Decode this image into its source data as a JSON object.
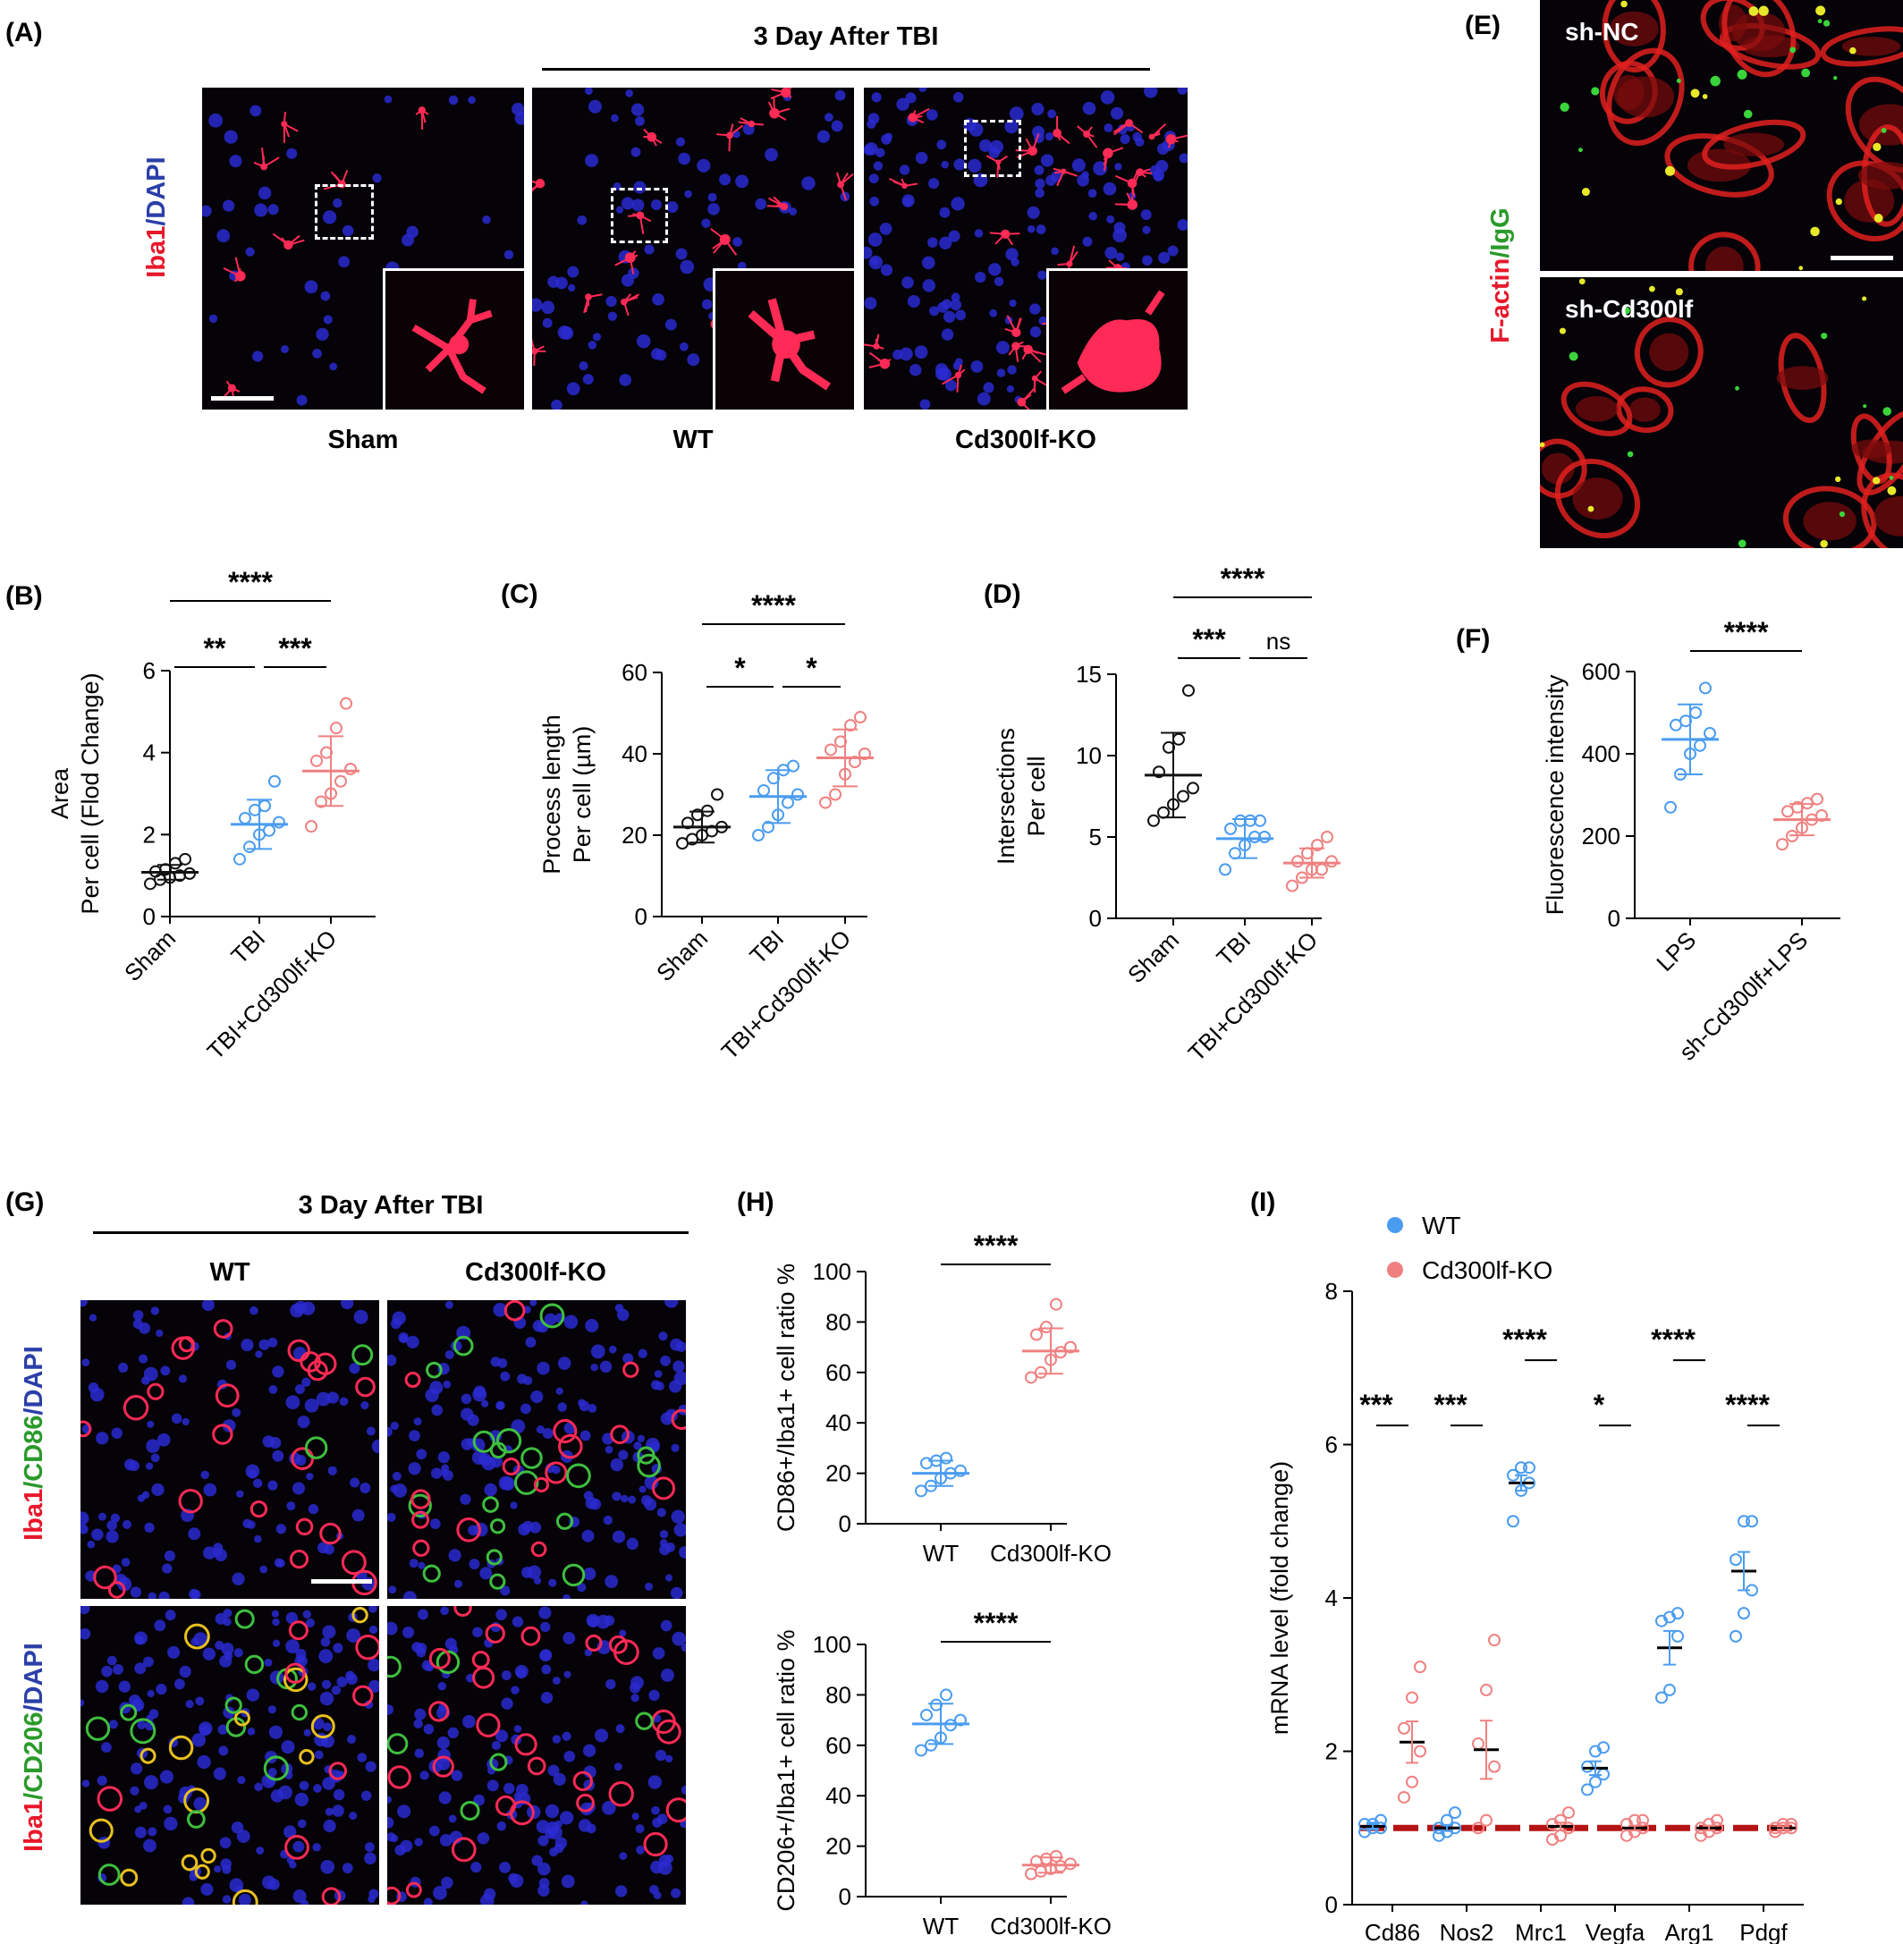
{
  "panelA": {
    "label": "(A)",
    "header": "3 Day After TBI",
    "stain": {
      "a": "Iba1",
      "sep": "/",
      "b": "DAPI"
    },
    "groups": [
      "Sham",
      "WT",
      "Cd300lf-KO"
    ]
  },
  "panelE": {
    "label": "(E)",
    "stain": {
      "a": "F-actin",
      "sep": "/",
      "b": "IgG"
    },
    "images": [
      "sh-NC",
      "sh-Cd300lf"
    ]
  },
  "panelG": {
    "label": "(G)",
    "header": "3 Day After TBI",
    "cols": [
      "WT",
      "Cd300lf-KO"
    ],
    "stain_top": {
      "a": "Iba1",
      "sep1": "/",
      "b": "CD86",
      "sep2": "/",
      "c": "DAPI"
    },
    "stain_bottom": {
      "a": "Iba1",
      "sep1": "/",
      "b": "CD206",
      "sep2": "/",
      "c": "DAPI"
    }
  },
  "chart_data": [
    {
      "panel": "(B)",
      "type": "scatter",
      "categories": [
        "Sham",
        "TBI",
        "TBI+Cd300lf-KO"
      ],
      "ylabel": [
        "Area",
        "Per cell (Flod Change)"
      ],
      "ylim": [
        0,
        6
      ],
      "yticks": [
        0,
        2,
        4,
        6
      ],
      "colors": [
        "#111111",
        "#4a9cf0",
        "#f08080"
      ],
      "series": [
        {
          "values": [
            0.8,
            0.9,
            0.95,
            1.0,
            1.05,
            1.1,
            1.15,
            1.3,
            1.4
          ],
          "mean": 1.08,
          "sd": 0.18
        },
        {
          "values": [
            1.4,
            1.7,
            2.0,
            2.1,
            2.3,
            2.4,
            2.6,
            2.7,
            3.3
          ],
          "mean": 2.25,
          "sd": 0.6
        },
        {
          "values": [
            2.2,
            2.8,
            3.0,
            3.3,
            3.6,
            3.8,
            4.0,
            4.6,
            5.2
          ],
          "mean": 3.55,
          "sd": 0.85
        }
      ],
      "significance": [
        {
          "from": 0,
          "to": 1,
          "label": "**"
        },
        {
          "from": 1,
          "to": 2,
          "label": "***"
        },
        {
          "from": 0,
          "to": 2,
          "label": "****"
        }
      ]
    },
    {
      "panel": "(C)",
      "type": "scatter",
      "categories": [
        "Sham",
        "TBI",
        "TBI+Cd300lf-KO"
      ],
      "ylabel": [
        "Process length",
        "Per cell (µm)"
      ],
      "ylim": [
        0,
        60
      ],
      "yticks": [
        0,
        20,
        40,
        60
      ],
      "colors": [
        "#111111",
        "#4a9cf0",
        "#f08080"
      ],
      "series": [
        {
          "values": [
            18,
            19,
            20,
            21,
            22,
            23,
            25,
            26,
            30
          ],
          "mean": 22,
          "sd": 3.8
        },
        {
          "values": [
            20,
            22,
            25,
            28,
            30,
            31,
            34,
            36,
            37
          ],
          "mean": 29.5,
          "sd": 6.5
        },
        {
          "values": [
            28,
            30,
            35,
            38,
            40,
            41,
            43,
            47,
            49
          ],
          "mean": 39,
          "sd": 7
        }
      ],
      "significance": [
        {
          "from": 0,
          "to": 1,
          "label": "*"
        },
        {
          "from": 1,
          "to": 2,
          "label": "*"
        },
        {
          "from": 0,
          "to": 2,
          "label": "****"
        }
      ]
    },
    {
      "panel": "(D)",
      "type": "scatter",
      "categories": [
        "Sham",
        "TBI",
        "TBI+Cd300lf-KO"
      ],
      "ylabel": [
        "Intersections",
        "Per cell"
      ],
      "ylim": [
        0,
        15
      ],
      "yticks": [
        0,
        5,
        10,
        15
      ],
      "colors": [
        "#111111",
        "#4a9cf0",
        "#f08080"
      ],
      "series": [
        {
          "values": [
            6,
            6.5,
            7,
            7.5,
            8,
            9,
            10.5,
            11,
            14
          ],
          "mean": 8.8,
          "sd": 2.6
        },
        {
          "values": [
            3,
            4,
            4.5,
            5,
            5,
            5.5,
            6,
            6,
            6
          ],
          "mean": 4.9,
          "sd": 1.2
        },
        {
          "values": [
            2,
            2.5,
            3,
            3,
            3.5,
            3.5,
            4,
            4.5,
            5
          ],
          "mean": 3.4,
          "sd": 0.9
        }
      ],
      "significance": [
        {
          "from": 0,
          "to": 1,
          "label": "***"
        },
        {
          "from": 1,
          "to": 2,
          "label": "ns"
        },
        {
          "from": 0,
          "to": 2,
          "label": "****"
        }
      ]
    },
    {
      "panel": "(F)",
      "type": "scatter",
      "categories": [
        "LPS",
        "sh-Cd300lf+LPS"
      ],
      "ylabel": [
        "Fluorescence intensity"
      ],
      "ylim": [
        0,
        600
      ],
      "yticks": [
        0,
        200,
        400,
        600
      ],
      "colors": [
        "#4a9cf0",
        "#f08080"
      ],
      "series": [
        {
          "values": [
            270,
            350,
            400,
            420,
            450,
            470,
            480,
            500,
            560
          ],
          "mean": 435,
          "sd": 85
        },
        {
          "values": [
            180,
            200,
            220,
            240,
            250,
            260,
            270,
            280,
            290
          ],
          "mean": 240,
          "sd": 38
        }
      ],
      "significance": [
        {
          "from": 0,
          "to": 1,
          "label": "****"
        }
      ]
    },
    {
      "panel": "(H)",
      "type": "scatter",
      "categories": [
        "WT",
        "Cd300lf-KO"
      ],
      "ylabel": [
        "CD86+/Iba1+ cell ratio %"
      ],
      "ylim": [
        0,
        100
      ],
      "yticks": [
        0,
        20,
        40,
        60,
        80,
        100
      ],
      "colors": [
        "#4a9cf0",
        "#f08080"
      ],
      "series": [
        {
          "values": [
            13,
            15,
            18,
            20,
            21,
            24,
            25,
            26
          ],
          "mean": 20,
          "sd": 5
        },
        {
          "values": [
            58,
            60,
            65,
            68,
            70,
            75,
            78,
            87
          ],
          "mean": 68.5,
          "sd": 9
        }
      ],
      "significance": [
        {
          "from": 0,
          "to": 1,
          "label": "****"
        }
      ]
    },
    {
      "panel": "(H)",
      "type": "scatter",
      "categories": [
        "WT",
        "Cd300lf-KO"
      ],
      "ylabel": [
        "CD206+/Iba1+ cell ratio %"
      ],
      "ylim": [
        0,
        100
      ],
      "yticks": [
        0,
        20,
        40,
        60,
        80,
        100
      ],
      "colors": [
        "#4a9cf0",
        "#f08080"
      ],
      "series": [
        {
          "values": [
            58,
            60,
            63,
            68,
            70,
            72,
            76,
            80
          ],
          "mean": 68.5,
          "sd": 8
        },
        {
          "values": [
            9,
            10,
            11,
            12,
            13,
            14,
            15,
            16
          ],
          "mean": 12.5,
          "sd": 3
        }
      ],
      "significance": [
        {
          "from": 0,
          "to": 1,
          "label": "****"
        }
      ]
    },
    {
      "panel": "(I)",
      "type": "scatter",
      "categories": [
        "Cd86",
        "Nos2",
        "Mrc1",
        "Vegfa",
        "Arg1",
        "Pdgf"
      ],
      "ylabel": [
        "mRNA level (fold change)"
      ],
      "ylim": [
        0,
        8
      ],
      "yticks": [
        0,
        2,
        4,
        6,
        8
      ],
      "reference_line": 1,
      "legend": [
        {
          "name": "WT",
          "color": "#4a9cf0"
        },
        {
          "name": "Cd300lf-KO",
          "color": "#f08080"
        }
      ],
      "series": [
        {
          "name": "WT",
          "color": "#4a9cf0",
          "groups": [
            {
              "values": [
                0.95,
                1.0,
                1.0,
                1.05,
                1.05,
                1.1
              ],
              "mean": 1.02,
              "sem": 0.03
            },
            {
              "values": [
                0.9,
                0.95,
                1.0,
                1.0,
                1.1,
                1.2
              ],
              "mean": 1.0,
              "sem": 0.04
            },
            {
              "values": [
                5.0,
                5.4,
                5.5,
                5.6,
                5.7,
                5.7
              ],
              "mean": 5.5,
              "sem": 0.1
            },
            {
              "values": [
                1.5,
                1.6,
                1.7,
                1.8,
                2.0,
                2.05
              ],
              "mean": 1.78,
              "sem": 0.09
            },
            {
              "values": [
                2.7,
                2.8,
                3.5,
                3.7,
                3.75,
                3.8
              ],
              "mean": 3.35,
              "sem": 0.22
            },
            {
              "values": [
                3.5,
                3.8,
                4.1,
                4.5,
                5.0,
                5.0
              ],
              "mean": 4.35,
              "sem": 0.25
            }
          ]
        },
        {
          "name": "Cd300lf-KO",
          "color": "#f08080",
          "groups": [
            {
              "values": [
                1.4,
                1.6,
                2.0,
                2.3,
                2.7,
                3.1
              ],
              "mean": 2.12,
              "sem": 0.27
            },
            {
              "values": [
                1.0,
                1.1,
                1.8,
                2.1,
                2.8,
                3.45
              ],
              "mean": 2.02,
              "sem": 0.38
            },
            {
              "values": [
                0.85,
                0.9,
                1.0,
                1.05,
                1.1,
                1.2
              ],
              "mean": 1.02,
              "sem": 0.05
            },
            {
              "values": [
                0.9,
                0.95,
                1.0,
                1.05,
                1.1,
                1.1
              ],
              "mean": 1.0,
              "sem": 0.03
            },
            {
              "values": [
                0.9,
                0.95,
                1.0,
                1.0,
                1.05,
                1.1
              ],
              "mean": 1.0,
              "sem": 0.03
            },
            {
              "values": [
                0.95,
                1.0,
                1.0,
                1.0,
                1.05,
                1.05
              ],
              "mean": 1.0,
              "sem": 0.02
            }
          ]
        }
      ],
      "significance": [
        "***",
        "***",
        "****",
        "*",
        "****",
        "****"
      ]
    }
  ]
}
